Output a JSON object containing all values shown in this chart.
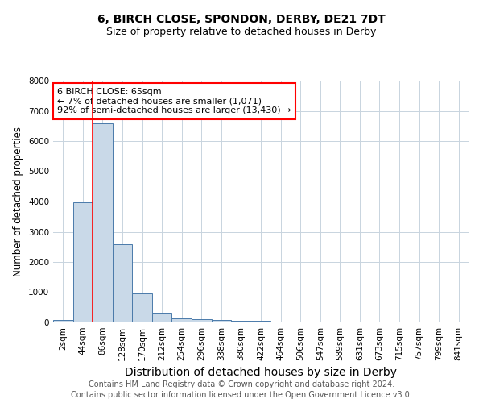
{
  "title1": "6, BIRCH CLOSE, SPONDON, DERBY, DE21 7DT",
  "title2": "Size of property relative to detached houses in Derby",
  "xlabel": "Distribution of detached houses by size in Derby",
  "ylabel": "Number of detached properties",
  "footnote1": "Contains HM Land Registry data © Crown copyright and database right 2024.",
  "footnote2": "Contains public sector information licensed under the Open Government Licence v3.0.",
  "bin_labels": [
    "2sqm",
    "44sqm",
    "86sqm",
    "128sqm",
    "170sqm",
    "212sqm",
    "254sqm",
    "296sqm",
    "338sqm",
    "380sqm",
    "422sqm",
    "464sqm",
    "506sqm",
    "547sqm",
    "589sqm",
    "631sqm",
    "673sqm",
    "715sqm",
    "757sqm",
    "799sqm",
    "841sqm"
  ],
  "bar_values": [
    75,
    3980,
    6580,
    2600,
    960,
    320,
    125,
    105,
    85,
    55,
    55,
    0,
    0,
    0,
    0,
    0,
    0,
    0,
    0,
    0,
    0
  ],
  "bar_color": "#c9d9e8",
  "bar_edge_color": "#4a7aaa",
  "grid_color": "#c8d4de",
  "annotation_box_text": "6 BIRCH CLOSE: 65sqm\n← 7% of detached houses are smaller (1,071)\n92% of semi-detached houses are larger (13,430) →",
  "annotation_box_color": "white",
  "annotation_box_edge_color": "red",
  "red_line_x": 1.5,
  "ylim": [
    0,
    8000
  ],
  "yticks": [
    0,
    1000,
    2000,
    3000,
    4000,
    5000,
    6000,
    7000,
    8000
  ],
  "background_color": "white",
  "title1_fontsize": 10,
  "title2_fontsize": 9,
  "xlabel_fontsize": 10,
  "ylabel_fontsize": 8.5,
  "tick_fontsize": 7.5,
  "footnote_fontsize": 7,
  "ann_fontsize": 8
}
